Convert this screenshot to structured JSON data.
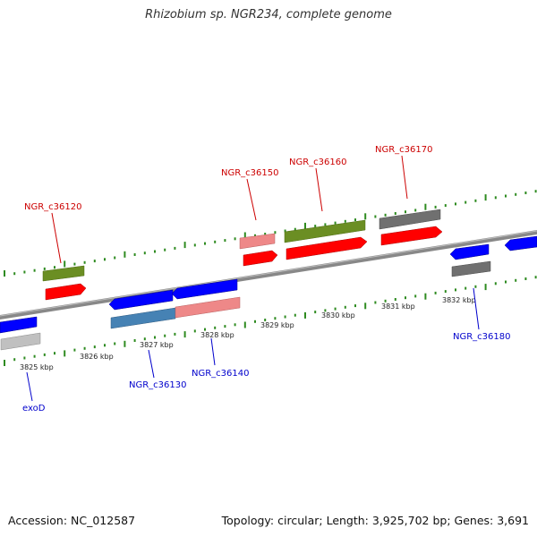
{
  "header": {
    "title": "Rhizobium sp. NGR234, complete genome"
  },
  "footer": {
    "accession": "Accession: NC_012587",
    "stats": "Topology: circular; Length: 3,925,702 bp; Genes: 3,691"
  },
  "scale_labels": [
    "3825 kbp",
    "3826 kbp",
    "3827 kbp",
    "3828 kbp",
    "3829 kbp",
    "3830 kbp",
    "3831 kbp",
    "3832 kbp"
  ],
  "genes_forward": [
    {
      "label": "NGR_c36120",
      "color": "#cc0000"
    },
    {
      "label": "NGR_c36150",
      "color": "#cc0000"
    },
    {
      "label": "NGR_c36160",
      "color": "#cc0000"
    },
    {
      "label": "NGR_c36170",
      "color": "#cc0000"
    }
  ],
  "genes_reverse": [
    {
      "label": "exoD",
      "color": "#0000cc"
    },
    {
      "label": "NGR_c36130",
      "color": "#0000cc"
    },
    {
      "label": "NGR_c36140",
      "color": "#0000cc"
    },
    {
      "label": "NGR_c36180",
      "color": "#0000cc"
    }
  ],
  "colors": {
    "backbone": "#808080",
    "tick": "#2e8b20",
    "cds_forward": "#ff0000",
    "cds_reverse": "#0000ff",
    "category_green": "#6b8e23",
    "category_pink": "#ee8888",
    "category_gray": "#707070",
    "category_lightgray": "#c0c0c0",
    "category_steelblue": "#4682b4"
  }
}
